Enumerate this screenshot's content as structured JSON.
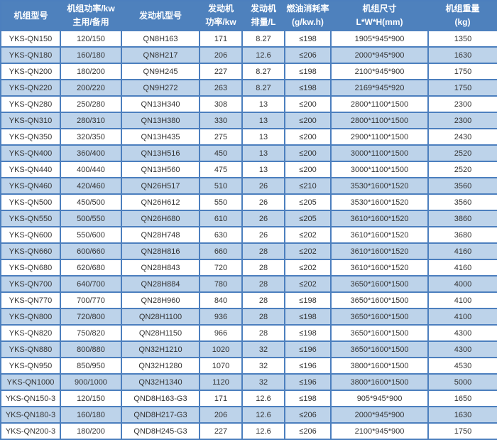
{
  "colors": {
    "header_bg": "#4e81bd",
    "header_text": "#ffffff",
    "border": "#4c7fbe",
    "stripe_bg": "#bdd3ea",
    "row_bg": "#ffffff",
    "cell_text": "#333333"
  },
  "table": {
    "columns": [
      {
        "id": "unit-model",
        "label_lines": [
          "机组型号"
        ]
      },
      {
        "id": "unit-power",
        "label_lines": [
          "机组功率/kw",
          "主用/备用"
        ]
      },
      {
        "id": "engine-model",
        "label_lines": [
          "发动机型号"
        ]
      },
      {
        "id": "engine-power",
        "label_lines": [
          "发动机",
          "功率/kw"
        ]
      },
      {
        "id": "displacement",
        "label_lines": [
          "发动机",
          "排量/L"
        ]
      },
      {
        "id": "fuel-consumption",
        "label_lines": [
          "燃油消耗率",
          "(g/kw.h)"
        ]
      },
      {
        "id": "unit-dimensions",
        "label_lines": [
          "机组尺寸",
          "L*W*H(mm)"
        ]
      },
      {
        "id": "unit-weight",
        "label_lines": [
          "机组重量",
          "(kg)"
        ]
      }
    ],
    "rows": [
      [
        "YKS-QN150",
        "120/150",
        "QN8H163",
        "171",
        "8.27",
        "≤198",
        "1905*945*900",
        "1350"
      ],
      [
        "YKS-QN180",
        "160/180",
        "QN8H217",
        "206",
        "12.6",
        "≤206",
        "2000*945*900",
        "1630"
      ],
      [
        "YKS-QN200",
        "180/200",
        "QN9H245",
        "227",
        "8.27",
        "≤198",
        "2100*945*900",
        "1750"
      ],
      [
        "YKS-QN220",
        "200/220",
        "QN9H272",
        "263",
        "8.27",
        "≤198",
        "2169*945*920",
        "1750"
      ],
      [
        "YKS-QN280",
        "250/280",
        "QN13H340",
        "308",
        "13",
        "≤200",
        "2800*1100*1500",
        "2300"
      ],
      [
        "YKS-QN310",
        "280/310",
        "QN13H380",
        "330",
        "13",
        "≤200",
        "2800*1100*1500",
        "2300"
      ],
      [
        "YKS-QN350",
        "320/350",
        "QN13H435",
        "275",
        "13",
        "≤200",
        "2900*1100*1500",
        "2430"
      ],
      [
        "YKS-QN400",
        "360/400",
        "QN13H516",
        "450",
        "13",
        "≤200",
        "3000*1100*1500",
        "2520"
      ],
      [
        "YKS-QN440",
        "400/440",
        "QN13H560",
        "475",
        "13",
        "≤200",
        "3000*1100*1500",
        "2520"
      ],
      [
        "YKS-QN460",
        "420/460",
        "QN26H517",
        "510",
        "26",
        "≤210",
        "3530*1600*1520",
        "3560"
      ],
      [
        "YKS-QN500",
        "450/500",
        "QN26H612",
        "550",
        "26",
        "≤205",
        "3530*1600*1520",
        "3560"
      ],
      [
        "YKS-QN550",
        "500/550",
        "QN26H680",
        "610",
        "26",
        "≤205",
        "3610*1600*1520",
        "3860"
      ],
      [
        "YKS-QN600",
        "550/600",
        "QN28H748",
        "630",
        "26",
        "≤202",
        "3610*1600*1520",
        "3680"
      ],
      [
        "YKS-QN660",
        "600/660",
        "QN28H816",
        "660",
        "28",
        "≤202",
        "3610*1600*1520",
        "4160"
      ],
      [
        "YKS-QN680",
        "620/680",
        "QN28H843",
        "720",
        "28",
        "≤202",
        "3610*1600*1520",
        "4160"
      ],
      [
        "YKS-QN700",
        "640/700",
        "QN28H884",
        "780",
        "28",
        "≤202",
        "3650*1600*1500",
        "4000"
      ],
      [
        "YKS-QN770",
        "700/770",
        "QN28H960",
        "840",
        "28",
        "≤198",
        "3650*1600*1500",
        "4100"
      ],
      [
        "YKS-QN800",
        "720/800",
        "QN28H1100",
        "936",
        "28",
        "≤198",
        "3650*1600*1500",
        "4100"
      ],
      [
        "YKS-QN820",
        "750/820",
        "QN28H1150",
        "966",
        "28",
        "≤198",
        "3650*1600*1500",
        "4300"
      ],
      [
        "YKS-QN880",
        "800/880",
        "QN32H1210",
        "1020",
        "32",
        "≤196",
        "3650*1600*1500",
        "4300"
      ],
      [
        "YKS-QN950",
        "850/950",
        "QN32H1280",
        "1070",
        "32",
        "≤196",
        "3800*1600*1500",
        "4530"
      ],
      [
        "YKS-QN1000",
        "900/1000",
        "QN32H1340",
        "1120",
        "32",
        "≤196",
        "3800*1600*1500",
        "5000"
      ],
      [
        "YKS-QN150-3",
        "120/150",
        "QND8H163-G3",
        "171",
        "12.6",
        "≤198",
        "905*945*900",
        "1650"
      ],
      [
        "YKS-QN180-3",
        "160/180",
        "QND8H217-G3",
        "206",
        "12.6",
        "≤206",
        "2000*945*900",
        "1630"
      ],
      [
        "YKS-QN200-3",
        "180/200",
        "QND8H245-G3",
        "227",
        "12.6",
        "≤206",
        "2100*945*900",
        "1750"
      ]
    ]
  }
}
